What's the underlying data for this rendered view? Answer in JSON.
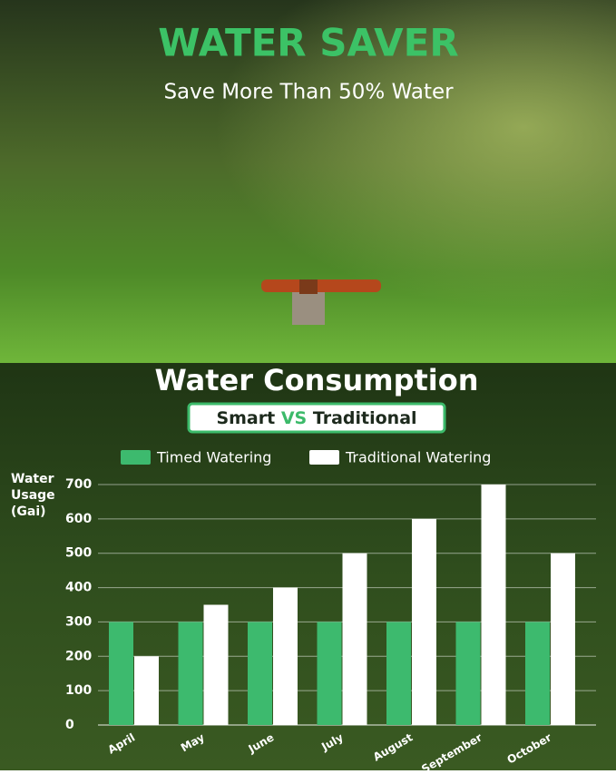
{
  "header": {
    "title": "WATER SAVER",
    "subtitle": "Save More Than 50% Water"
  },
  "section": {
    "title": "Water Consumption",
    "badge": [
      "Smart",
      "VS",
      "Traditional"
    ]
  },
  "chart_data": {
    "type": "bar",
    "ylabel_lines": [
      "Water",
      "Usage",
      "(Gai)"
    ],
    "categories": [
      "April",
      "May",
      "June",
      "July",
      "August",
      "September",
      "October"
    ],
    "series": [
      {
        "name": "Timed Watering",
        "color": "#3dba6e",
        "values": [
          300,
          300,
          300,
          300,
          300,
          300,
          300
        ]
      },
      {
        "name": "Traditional Watering",
        "color": "#ffffff",
        "values": [
          200,
          350,
          400,
          500,
          600,
          700,
          500
        ]
      }
    ],
    "ylim": [
      0,
      700
    ],
    "yticks": [
      0,
      100,
      200,
      300,
      400,
      500,
      600,
      700
    ],
    "grid": true
  }
}
